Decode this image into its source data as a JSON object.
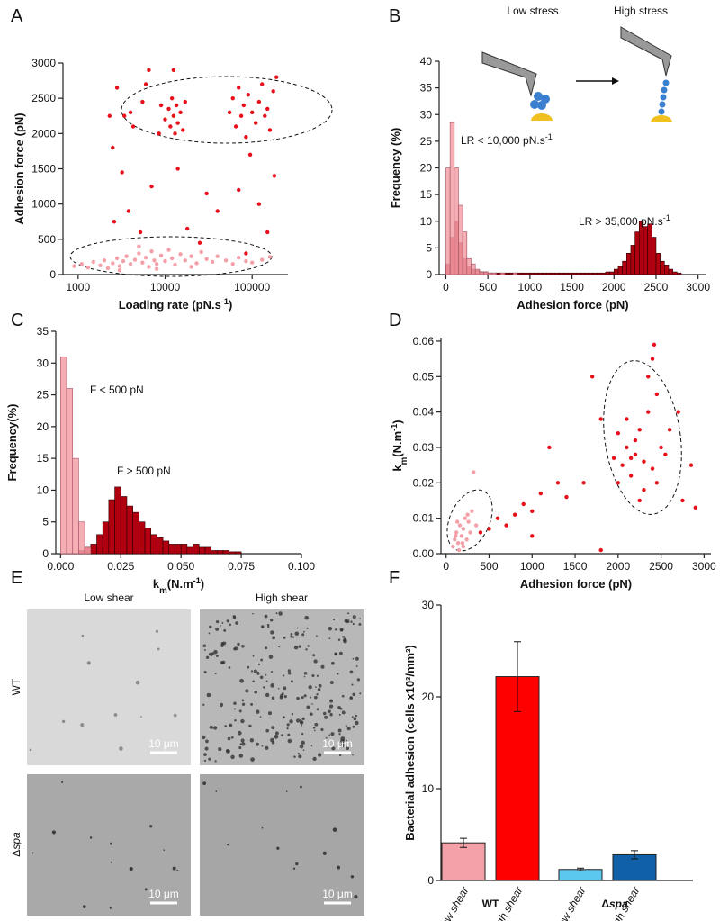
{
  "chart_data": [
    {
      "type": "scatter",
      "label": "A",
      "xscale": "log",
      "xlabel": [
        {
          "t": "Loading rate (pN.s"
        },
        {
          "t": "-1",
          "pos": "sup"
        },
        {
          "t": ")"
        }
      ],
      "ylabel": [
        {
          "t": "Adhesion force (pN)"
        }
      ],
      "xlim": [
        670,
        258000
      ],
      "xticks": [
        1000,
        10000,
        100000
      ],
      "ylim": [
        0,
        3000
      ],
      "yticks": [
        0,
        500,
        1000,
        1500,
        2000,
        2500,
        3000
      ],
      "series": [
        {
          "color": "#e8101a",
          "x": [
            2300,
            2500,
            2800,
            3400,
            3200,
            4000,
            4300,
            5500,
            6000,
            6500,
            2600,
            3800,
            5200,
            7000,
            8500,
            9000,
            10000,
            11000,
            11500,
            12000,
            12500,
            13000,
            13500,
            14000,
            15000,
            16000,
            17000,
            12500,
            14000,
            18000,
            25000,
            30000,
            40000,
            55000,
            60000,
            65000,
            70000,
            75000,
            80000,
            85000,
            90000,
            100000,
            110000,
            120000,
            130000,
            140000,
            150000,
            160000,
            175000,
            190000,
            95000,
            70000,
            120000,
            150000,
            85000,
            180000
          ],
          "y": [
            2250,
            1800,
            2650,
            2250,
            1450,
            2300,
            2100,
            2450,
            2700,
            2900,
            750,
            900,
            600,
            1250,
            2000,
            2400,
            2200,
            2350,
            2100,
            2500,
            2250,
            2000,
            2400,
            2150,
            2300,
            2050,
            2450,
            2900,
            1500,
            650,
            450,
            1150,
            900,
            2300,
            2500,
            2100,
            2650,
            2250,
            2400,
            1950,
            2550,
            2300,
            2150,
            2450,
            2700,
            2250,
            2350,
            2050,
            2600,
            2800,
            1700,
            1200,
            1000,
            600,
            300,
            1400
          ]
        },
        {
          "color": "#f4a0a8",
          "x": [
            900,
            1100,
            1300,
            1500,
            1800,
            2000,
            2200,
            2500,
            2800,
            3000,
            3300,
            3600,
            4000,
            4500,
            5000,
            5500,
            6000,
            6500,
            7000,
            7500,
            8000,
            9000,
            10000,
            11000,
            12000,
            13000,
            15000,
            17000,
            20000,
            23000,
            26000,
            30000,
            35000,
            40000,
            50000,
            60000,
            70000,
            85000,
            100000,
            130000,
            160000,
            8000,
            3000,
            20000,
            5000
          ],
          "y": [
            120,
            150,
            100,
            180,
            130,
            200,
            90,
            160,
            230,
            120,
            190,
            260,
            150,
            210,
            300,
            170,
            240,
            110,
            330,
            200,
            150,
            270,
            190,
            350,
            230,
            140,
            290,
            200,
            260,
            160,
            320,
            220,
            180,
            260,
            200,
            150,
            240,
            190,
            170,
            210,
            250,
            80,
            60,
            110,
            400
          ]
        }
      ]
    },
    {
      "type": "histogram",
      "label": "B",
      "xlabel": [
        {
          "t": "Adhesion force (pN)"
        }
      ],
      "ylabel": [
        {
          "t": "Frequency (%)"
        }
      ],
      "xlim": [
        -80,
        3100
      ],
      "xticks": [
        0,
        500,
        1000,
        1500,
        2000,
        2500,
        3000
      ],
      "ylim": [
        0,
        40
      ],
      "yticks": [
        0,
        5,
        10,
        15,
        20,
        25,
        30,
        35,
        40
      ],
      "bins": [
        0,
        50,
        100,
        150,
        200,
        250,
        300,
        350,
        400,
        450,
        500,
        550,
        600,
        650,
        700,
        750,
        800,
        850,
        900,
        950,
        1000,
        1050,
        1100,
        1150,
        1200,
        1250,
        1300,
        1350,
        1400,
        1450,
        1500,
        1550,
        1600,
        1650,
        1700,
        1750,
        1800,
        1850,
        1900,
        1950,
        2000,
        2050,
        2100,
        2150,
        2200,
        2250,
        2300,
        2350,
        2400,
        2450,
        2500,
        2550,
        2600,
        2650,
        2700,
        2750,
        2800,
        2850,
        2900,
        2950,
        3000
      ],
      "series": [
        {
          "color": "#b00010",
          "edge": "#2a0000",
          "values": [
            2,
            7,
            10,
            6,
            3,
            1.5,
            1,
            0.8,
            0.5,
            0.5,
            0.3,
            0.3,
            0.3,
            0.3,
            0.3,
            0.3,
            0.3,
            0.3,
            0.3,
            0.3,
            0.3,
            0.3,
            0.3,
            0.3,
            0.3,
            0.3,
            0.3,
            0.3,
            0.3,
            0.3,
            0.3,
            0.3,
            0.3,
            0.3,
            0.3,
            0.3,
            0.3,
            0.3,
            0.5,
            0.5,
            1,
            1.5,
            2.5,
            4,
            5.5,
            8,
            10,
            9,
            9.5,
            7,
            4,
            2.5,
            1.8,
            1,
            0.5,
            0.3,
            0,
            0,
            0,
            0
          ]
        },
        {
          "color": "#f4a0a8",
          "edge": "#a05060",
          "values": [
            20,
            28.5,
            20,
            13,
            8,
            3,
            2,
            1,
            0.5,
            0.5,
            0.3,
            0.3,
            0,
            0.3,
            0,
            0,
            0.3,
            0,
            0,
            0,
            0,
            0,
            0,
            0,
            0,
            0,
            0,
            0,
            0,
            0,
            0,
            0,
            0,
            0,
            0,
            0,
            0,
            0,
            0,
            0,
            0,
            0,
            0,
            0,
            0,
            0,
            0,
            0,
            0,
            0,
            0,
            0,
            0,
            0,
            0,
            0,
            0,
            0,
            0,
            0
          ]
        }
      ],
      "annotations": [
        [
          {
            "t": "LR < 10,000 pN.s"
          },
          {
            "t": "-1",
            "pos": "sup"
          }
        ],
        [
          {
            "t": "LR > 35,000 pN.s"
          },
          {
            "t": "-1",
            "pos": "sup"
          }
        ]
      ],
      "schematic": [
        "Low stress",
        "High stress"
      ]
    },
    {
      "type": "histogram",
      "label": "C",
      "xlabel": [
        {
          "t": "k"
        },
        {
          "t": "m",
          "pos": "sub"
        },
        {
          "t": "(N.m"
        },
        {
          "t": "-1",
          "pos": "sup"
        },
        {
          "t": ")"
        }
      ],
      "ylabel": [
        {
          "t": "Frequency(%)"
        }
      ],
      "xlim": [
        -0.002,
        0.1
      ],
      "xticks": [
        {
          "value": 0,
          "label": "0.000"
        },
        {
          "value": 0.025,
          "label": "0.025"
        },
        {
          "value": 0.05,
          "label": "0.050"
        },
        {
          "value": 0.075,
          "label": "0.075"
        },
        {
          "value": 0.1,
          "label": "0.100"
        }
      ],
      "ylim": [
        0,
        35
      ],
      "yticks": [
        0,
        5,
        10,
        15,
        20,
        25,
        30,
        35
      ],
      "bins": [
        0,
        0.0025,
        0.005,
        0.0075,
        0.01,
        0.0125,
        0.015,
        0.0175,
        0.02,
        0.0225,
        0.025,
        0.0275,
        0.03,
        0.0325,
        0.035,
        0.0375,
        0.04,
        0.0425,
        0.045,
        0.0475,
        0.05,
        0.0525,
        0.055,
        0.0575,
        0.06,
        0.0625,
        0.065,
        0.0675,
        0.07,
        0.0725,
        0.075,
        0.0775,
        0.08,
        0.0825,
        0.085,
        0.0875,
        0.09,
        0.0925,
        0.095,
        0.0975,
        0.1
      ],
      "series": [
        {
          "color": "#b00010",
          "edge": "#2a0000",
          "values": [
            0,
            0,
            0,
            0.5,
            1,
            1.5,
            3,
            5,
            8.5,
            10.5,
            9,
            7.5,
            6.5,
            5,
            4,
            3,
            2.5,
            2,
            1.5,
            1.5,
            1.5,
            1,
            1.5,
            1,
            1,
            0.5,
            0.5,
            0.5,
            0.3,
            0.3,
            0,
            0,
            0,
            0,
            0,
            0,
            0,
            0,
            0,
            0
          ]
        },
        {
          "color": "#f4a0a8",
          "edge": "#a05060",
          "values": [
            31,
            26,
            15,
            5,
            1,
            0,
            0,
            0,
            0,
            0,
            0,
            0,
            0,
            0,
            0,
            0,
            0,
            0,
            0,
            0,
            0,
            0,
            0,
            0,
            0,
            0,
            0,
            0,
            0,
            0,
            0,
            0,
            0,
            0,
            0,
            0,
            0,
            0,
            0,
            0
          ]
        }
      ],
      "annotations": [
        [
          {
            "t": "F < 500 pN"
          }
        ],
        [
          {
            "t": "F > 500 pN"
          }
        ]
      ]
    },
    {
      "type": "scatter",
      "label": "D",
      "xlabel": [
        {
          "t": "Adhesion force (pN)"
        }
      ],
      "ylabel": [
        {
          "t": "k"
        },
        {
          "t": "m",
          "pos": "sub"
        },
        {
          "t": "(N.m"
        },
        {
          "t": "-1",
          "pos": "sup"
        },
        {
          "t": ")"
        }
      ],
      "xlim": [
        -60,
        3080
      ],
      "xticks": [
        0,
        500,
        1000,
        1500,
        2000,
        2500,
        3000
      ],
      "ylim": [
        0,
        0.061
      ],
      "yticks": [
        {
          "value": 0,
          "label": "0.00"
        },
        {
          "value": 0.01,
          "label": "0.01"
        },
        {
          "value": 0.02,
          "label": "0.02"
        },
        {
          "value": 0.03,
          "label": "0.03"
        },
        {
          "value": 0.04,
          "label": "0.04"
        },
        {
          "value": 0.05,
          "label": "0.05"
        },
        {
          "value": 0.06,
          "label": "0.06"
        }
      ],
      "series": [
        {
          "color": "#e8101a",
          "x": [
            2000,
            2050,
            2100,
            2150,
            2200,
            2250,
            2300,
            2350,
            2400,
            2450,
            2500,
            2350,
            2400,
            2420,
            2300,
            2250,
            2200,
            2150,
            2450,
            2550,
            2600,
            2100,
            2000,
            1950,
            2700,
            2850,
            2900,
            1700,
            1800,
            1600,
            1400,
            1300,
            1100,
            1000,
            900,
            800,
            700,
            600,
            500,
            400,
            1200,
            1800,
            1000,
            2750
          ],
          "y": [
            0.02,
            0.025,
            0.03,
            0.022,
            0.028,
            0.035,
            0.026,
            0.04,
            0.024,
            0.045,
            0.03,
            0.05,
            0.055,
            0.059,
            0.018,
            0.015,
            0.032,
            0.027,
            0.02,
            0.028,
            0.035,
            0.038,
            0.034,
            0.027,
            0.04,
            0.025,
            0.013,
            0.05,
            0.038,
            0.02,
            0.016,
            0.02,
            0.017,
            0.012,
            0.014,
            0.011,
            0.008,
            0.01,
            0.007,
            0.006,
            0.03,
            0.001,
            0.005,
            0.015
          ]
        },
        {
          "color": "#f4a0a8",
          "x": [
            80,
            100,
            120,
            140,
            160,
            180,
            200,
            220,
            240,
            260,
            280,
            300,
            150,
            200,
            130,
            320,
            350,
            110,
            250,
            190
          ],
          "y": [
            0.002,
            0.004,
            0.006,
            0.003,
            0.008,
            0.005,
            0.007,
            0.01,
            0.004,
            0.009,
            0.006,
            0.012,
            0.001,
            0.002,
            0.009,
            0.023,
            0.008,
            0.005,
            0.011,
            0.003
          ]
        }
      ]
    },
    {
      "type": "bar",
      "label": "F",
      "ylabel": [
        {
          "t": "Bacterial adhesion (cells x10"
        },
        {
          "t": "3",
          "pos": "sup"
        },
        {
          "t": "/mm"
        },
        {
          "t": "2",
          "pos": "sup"
        },
        {
          "t": ")"
        }
      ],
      "categories": [
        "Low shear",
        "High shear",
        "Low shear",
        "High shear"
      ],
      "values": [
        4.1,
        22.2,
        1.2,
        2.8
      ],
      "errors": [
        0.5,
        3.8,
        0.15,
        0.45
      ],
      "colors": [
        "#f4a0a8",
        "#ff0000",
        "#5bc8f0",
        "#1060a8"
      ],
      "groups": [
        [
          {
            "t": "WT"
          }
        ],
        [
          {
            "t": "Δ"
          },
          {
            "t": "spa",
            "style": "italic"
          }
        ]
      ],
      "ylim": [
        0,
        30
      ],
      "yticks": [
        0,
        10,
        20,
        30
      ]
    }
  ],
  "panel_e": {
    "label": "E",
    "columns": [
      "Low shear",
      "High shear"
    ],
    "rows": [
      [
        {
          "t": "WT"
        }
      ],
      [
        {
          "t": "Δ"
        },
        {
          "t": "spa",
          "style": "italic"
        }
      ]
    ],
    "scale_bars": [
      "10 μm",
      "10 μm",
      "10 μm",
      "10 μm"
    ]
  }
}
